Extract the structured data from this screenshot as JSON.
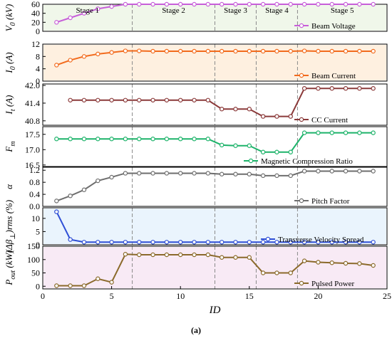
{
  "chart_data": {
    "type": "line",
    "caption": "(a)",
    "xlabel": "ID",
    "xlim": [
      0,
      25
    ],
    "xticks": [
      0,
      5,
      10,
      15,
      20,
      25
    ],
    "stage_boundaries": [
      6.5,
      12.5,
      15.5,
      18.5
    ],
    "stages": [
      "Stage 1",
      "Stage 2",
      "Stage 3",
      "Stage 4",
      "Stage 5"
    ],
    "panels": [
      {
        "ylabel": "V_0 (kV)",
        "ylabel_main": "V",
        "ylabel_sub": "0",
        "ylabel_rest": " (kV)",
        "ylim": [
          0,
          60
        ],
        "yticks": [
          0,
          20,
          40,
          60
        ],
        "yticklabels": [
          "0",
          "20",
          "40",
          "60"
        ],
        "color": "#c75fd9",
        "shade": "#e6f2dc",
        "legend": "Beam Voltage",
        "x": [
          1,
          2,
          3,
          4,
          5,
          6,
          7,
          8,
          9,
          10,
          11,
          12,
          13,
          14,
          15,
          16,
          17,
          18,
          19,
          20,
          21,
          22,
          23,
          24
        ],
        "values": [
          20,
          30,
          40,
          50,
          55,
          60,
          60,
          60,
          60,
          60,
          60,
          60,
          60,
          60,
          60,
          60,
          60,
          60,
          60,
          60,
          60,
          60,
          60,
          60
        ]
      },
      {
        "ylabel": "I_0 (A)",
        "ylabel_main": "I",
        "ylabel_sub": "0",
        "ylabel_rest": " (A)",
        "ylim": [
          0,
          12
        ],
        "yticks": [
          0,
          4,
          8,
          12
        ],
        "yticklabels": [
          "0",
          "4",
          "8",
          "12"
        ],
        "color": "#f26b1d",
        "shade": "#fde6cc",
        "legend": "Beam Current",
        "x": [
          1,
          2,
          3,
          4,
          5,
          6,
          7,
          8,
          9,
          10,
          11,
          12,
          13,
          14,
          15,
          16,
          17,
          18,
          19,
          20,
          21,
          22,
          23,
          24
        ],
        "values": [
          5.2,
          6.8,
          8,
          8.8,
          9.3,
          9.8,
          9.8,
          9.7,
          9.7,
          9.7,
          9.7,
          9.7,
          9.7,
          9.7,
          9.7,
          9.7,
          9.7,
          9.7,
          9.8,
          9.7,
          9.7,
          9.7,
          9.7,
          9.7
        ]
      },
      {
        "ylabel": "I_t (A)",
        "ylabel_main": "I",
        "ylabel_sub": "t",
        "ylabel_rest": " (A)",
        "ylim": [
          40.65,
          42.05
        ],
        "yticks": [
          40.8,
          41.4,
          42.0
        ],
        "yticklabels": [
          "40.8",
          "41.4",
          "42.0"
        ],
        "color": "#8b3a3a",
        "shade": "",
        "legend": "CC Current",
        "x": [
          2,
          3,
          4,
          5,
          6,
          7,
          8,
          9,
          10,
          11,
          12,
          13,
          14,
          15,
          16,
          17,
          18,
          19,
          20,
          21,
          22,
          23,
          24
        ],
        "values": [
          41.5,
          41.5,
          41.5,
          41.5,
          41.5,
          41.5,
          41.5,
          41.5,
          41.5,
          41.5,
          41.5,
          41.2,
          41.2,
          41.2,
          40.95,
          40.95,
          40.95,
          41.9,
          41.9,
          41.9,
          41.9,
          41.9,
          41.9
        ]
      },
      {
        "ylabel": "F_m",
        "ylabel_main": "F",
        "ylabel_sub": "m",
        "ylabel_rest": "",
        "ylim": [
          16.45,
          17.75
        ],
        "yticks": [
          16.5,
          17.0,
          17.5
        ],
        "yticklabels": [
          "16.5",
          "17.0",
          "17.5"
        ],
        "color": "#1db36a",
        "shade": "",
        "legend": "Magnetic Compression Ratio",
        "x": [
          1,
          2,
          3,
          4,
          5,
          6,
          7,
          8,
          9,
          10,
          11,
          12,
          13,
          14,
          15,
          16,
          17,
          18,
          19,
          20,
          21,
          22,
          23,
          24
        ],
        "values": [
          17.35,
          17.35,
          17.35,
          17.35,
          17.35,
          17.35,
          17.35,
          17.35,
          17.35,
          17.35,
          17.35,
          17.35,
          17.15,
          17.13,
          17.13,
          16.92,
          16.92,
          16.92,
          17.55,
          17.55,
          17.55,
          17.55,
          17.55,
          17.55
        ]
      },
      {
        "ylabel": "α",
        "ylabel_main": "α",
        "ylabel_sub": "",
        "ylabel_rest": "",
        "ylim": [
          0,
          1.3
        ],
        "yticks": [
          0,
          0.4,
          0.8,
          1.2
        ],
        "yticklabels": [
          "0.0",
          "0.4",
          "0.8",
          "1.2"
        ],
        "color": "#6e6e6e",
        "shade": "",
        "legend": "Pitch Factor",
        "x": [
          1,
          2,
          3,
          4,
          5,
          6,
          7,
          8,
          9,
          10,
          11,
          12,
          13,
          14,
          15,
          16,
          17,
          18,
          19,
          20,
          21,
          22,
          23,
          24
        ],
        "values": [
          0.18,
          0.35,
          0.55,
          0.85,
          0.97,
          1.1,
          1.1,
          1.1,
          1.1,
          1.1,
          1.1,
          1.1,
          1.07,
          1.07,
          1.07,
          1.02,
          1.02,
          1.02,
          1.17,
          1.17,
          1.17,
          1.17,
          1.17,
          1.17
        ]
      },
      {
        "ylabel": "(Δβ⊥)rms (%)",
        "ylabel_main": "(Δβ",
        "ylabel_sub": "⊥",
        "ylabel_rest": ")rms (%)",
        "ylim": [
          0,
          14
        ],
        "yticks": [
          0,
          5,
          10
        ],
        "yticklabels": [
          "0",
          "5",
          "10"
        ],
        "color": "#2f4fd6",
        "shade": "#dcecfb",
        "legend": "Transverse Velocity Spread",
        "x": [
          1,
          2,
          3,
          4,
          5,
          6,
          7,
          8,
          9,
          10,
          11,
          12,
          13,
          14,
          15,
          16,
          17,
          18,
          19,
          20,
          21,
          22,
          23,
          24
        ],
        "values": [
          12.5,
          2,
          1,
          1,
          1,
          1,
          1,
          1,
          1,
          1,
          1,
          1,
          1,
          1,
          1,
          1,
          1,
          1,
          1,
          1,
          1,
          1,
          1,
          1
        ]
      },
      {
        "ylabel": "P_out (kW)",
        "ylabel_main": "P",
        "ylabel_sub": "out",
        "ylabel_rest": " (kW)",
        "ylim": [
          -10,
          150
        ],
        "yticks": [
          0,
          50,
          100,
          150
        ],
        "yticklabels": [
          "0",
          "50",
          "100",
          "150"
        ],
        "color": "#8b6a2b",
        "shade": "#f3dcef",
        "legend": "Pulsed Power",
        "x": [
          1,
          2,
          3,
          4,
          5,
          6,
          7,
          8,
          9,
          10,
          11,
          12,
          13,
          14,
          15,
          16,
          17,
          18,
          19,
          20,
          21,
          22,
          23,
          24
        ],
        "values": [
          2,
          2,
          2,
          28,
          15,
          120,
          118,
          118,
          118,
          118,
          118,
          118,
          108,
          108,
          108,
          50,
          50,
          50,
          95,
          90,
          88,
          86,
          85,
          78
        ]
      }
    ]
  }
}
